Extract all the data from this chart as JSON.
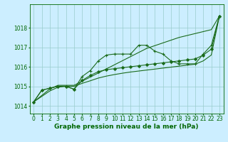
{
  "title": "Graphe pression niveau de la mer (hPa)",
  "xlabel_hours": [
    0,
    1,
    2,
    3,
    4,
    5,
    6,
    7,
    8,
    9,
    10,
    11,
    12,
    13,
    14,
    15,
    16,
    17,
    18,
    19,
    20,
    21,
    22,
    23
  ],
  "series": [
    {
      "name": "line_straight_upper",
      "color": "#1a6b1a",
      "linewidth": 0.8,
      "marker": null,
      "markersize": 0,
      "values": [
        1014.2,
        1014.53,
        1014.86,
        1015.05,
        1015.05,
        1015.05,
        1015.26,
        1015.47,
        1015.68,
        1015.89,
        1016.1,
        1016.31,
        1016.52,
        1016.73,
        1016.94,
        1017.08,
        1017.22,
        1017.36,
        1017.5,
        1017.6,
        1017.7,
        1017.8,
        1017.9,
        1018.6
      ]
    },
    {
      "name": "line_with_plus",
      "color": "#1a6b1a",
      "linewidth": 0.8,
      "marker": "+",
      "markersize": 3.5,
      "values": [
        1014.2,
        1014.8,
        1014.9,
        1015.0,
        1015.0,
        1014.85,
        1015.5,
        1015.8,
        1016.3,
        1016.6,
        1016.65,
        1016.65,
        1016.65,
        1017.1,
        1017.1,
        1016.8,
        1016.65,
        1016.3,
        1016.15,
        1016.15,
        1016.15,
        1016.65,
        1017.1,
        1018.6
      ]
    },
    {
      "name": "line_with_diamond",
      "color": "#1a6b1a",
      "linewidth": 0.8,
      "marker": "D",
      "markersize": 2.0,
      "values": [
        1014.2,
        1014.8,
        1014.9,
        1015.0,
        1015.0,
        1014.85,
        1015.3,
        1015.55,
        1015.75,
        1015.85,
        1015.9,
        1015.95,
        1016.0,
        1016.05,
        1016.1,
        1016.15,
        1016.2,
        1016.25,
        1016.3,
        1016.35,
        1016.4,
        1016.6,
        1016.9,
        1018.6
      ]
    },
    {
      "name": "line_straight_lower",
      "color": "#1a6b1a",
      "linewidth": 0.8,
      "marker": null,
      "markersize": 0,
      "values": [
        1014.2,
        1014.48,
        1014.76,
        1014.95,
        1015.0,
        1015.0,
        1015.15,
        1015.28,
        1015.42,
        1015.52,
        1015.6,
        1015.67,
        1015.73,
        1015.78,
        1015.83,
        1015.88,
        1015.93,
        1015.98,
        1016.03,
        1016.08,
        1016.13,
        1016.3,
        1016.6,
        1018.6
      ]
    }
  ],
  "ylim": [
    1013.6,
    1019.2
  ],
  "yticks": [
    1014,
    1015,
    1016,
    1017,
    1018
  ],
  "xlim": [
    -0.5,
    23.5
  ],
  "bg_color": "#cceeff",
  "grid_color": "#99cccc",
  "text_color": "#006600",
  "title_color": "#006600",
  "title_fontsize": 6.5,
  "tick_fontsize": 5.5
}
